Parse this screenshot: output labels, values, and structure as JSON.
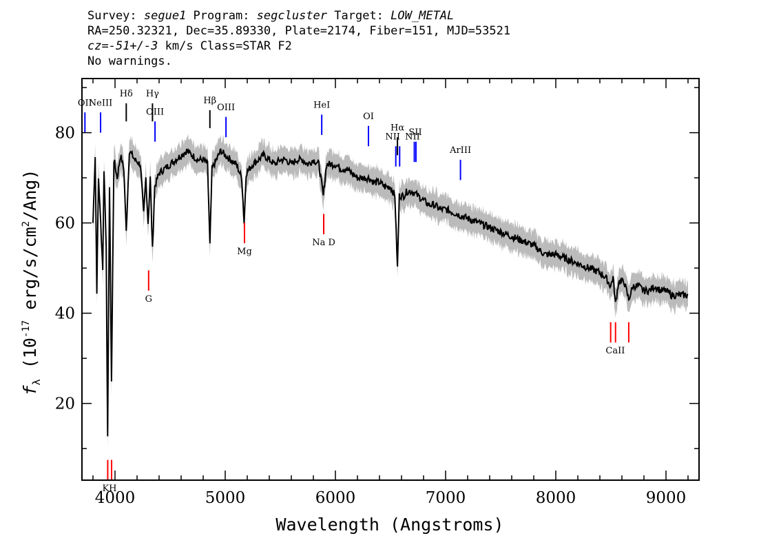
{
  "header": {
    "line1": {
      "survey_label": "Survey: ",
      "survey": "segue1",
      "program_label": " Program: ",
      "program": "segcluster",
      "target_label": " Target: ",
      "target": "LOW_METAL"
    },
    "line2": "RA=250.32321, Dec=35.89330, Plate=2174, Fiber=151, MJD=53521",
    "line3": {
      "cz_label": "cz=",
      "cz_value": "-51+/-3",
      "cz_rest": " km/s Class=STAR F2"
    },
    "line4": "No warnings."
  },
  "chart_data": {
    "type": "line",
    "xlabel": "Wavelength (Angstroms)",
    "ylabel": "f_λ (10^-17 erg/s/cm^2/Ang)",
    "xlim": [
      3700,
      9300
    ],
    "ylim": [
      3,
      92
    ],
    "x_ticks": [
      4000,
      5000,
      6000,
      7000,
      8000,
      9000
    ],
    "y_ticks": [
      20,
      40,
      60,
      80
    ],
    "grid": false,
    "colors": {
      "flux": "#000000",
      "error_band": "#bbbbbb",
      "emission": "#0000ff",
      "absorption": "#ff0000",
      "balmer": "#000000"
    },
    "series": [
      {
        "values_note": "observed flux",
        "x": [
          3800,
          3820,
          3835,
          3850,
          3870,
          3889,
          3900,
          3920,
          3933,
          3950,
          3968,
          3990,
          4020,
          4050,
          4080,
          4102,
          4130,
          4180,
          4230,
          4260,
          4280,
          4300,
          4320,
          4340,
          4360,
          4400,
          4450,
          4500,
          4550,
          4600,
          4650,
          4700,
          4750,
          4800,
          4840,
          4861,
          4880,
          4920,
          4960,
          5000,
          5050,
          5100,
          5150,
          5172,
          5190,
          5250,
          5300,
          5350,
          5400,
          5450,
          5500,
          5550,
          5600,
          5650,
          5700,
          5750,
          5800,
          5850,
          5890,
          5920,
          5950,
          6000,
          6050,
          6100,
          6150,
          6200,
          6250,
          6300,
          6350,
          6400,
          6450,
          6500,
          6540,
          6563,
          6580,
          6620,
          6650,
          6700,
          6750,
          6800,
          6850,
          6900,
          6950,
          7000,
          7100,
          7200,
          7300,
          7400,
          7500,
          7600,
          7700,
          7800,
          7900,
          8000,
          8100,
          8200,
          8300,
          8400,
          8450,
          8498,
          8520,
          8542,
          8570,
          8620,
          8662,
          8700,
          8750,
          8800,
          8850,
          8900,
          8950,
          9000,
          9050,
          9100,
          9150,
          9200
        ],
        "values": [
          60,
          75,
          45,
          70,
          60,
          50,
          72,
          55,
          12,
          68,
          25,
          74,
          70,
          75,
          72,
          58,
          76,
          74,
          73,
          62,
          70,
          60,
          70,
          54,
          68,
          71,
          72,
          73,
          74,
          75,
          76,
          75,
          74,
          74,
          73,
          55,
          72,
          74,
          76,
          75,
          74,
          73,
          70,
          60,
          71,
          73,
          74,
          75,
          74,
          73,
          74,
          74,
          73,
          74,
          74,
          73,
          74,
          73,
          66,
          73,
          73,
          73,
          72,
          72,
          71,
          70,
          70,
          70,
          69,
          69,
          68,
          68,
          66,
          50,
          66,
          66,
          67,
          67,
          66,
          65,
          64,
          64,
          63,
          63,
          62,
          61,
          60,
          59,
          58,
          57,
          56,
          55,
          53,
          53,
          52,
          51,
          50,
          49,
          48,
          46,
          48,
          42,
          47,
          47,
          43,
          46,
          46,
          45,
          45,
          46,
          45,
          45,
          44,
          44,
          44,
          44
        ]
      }
    ],
    "emission_lines": [
      {
        "label": "OII",
        "x": 3727,
        "y_top": 84.5,
        "y_bottom": 80
      },
      {
        "label": "NeIII",
        "x": 3869,
        "y_top": 84.5,
        "y_bottom": 80
      },
      {
        "label": "OIII",
        "x": 4363,
        "y_top": 82.5,
        "y_bottom": 78
      },
      {
        "label": "OIII",
        "x": 5007,
        "y_top": 83.5,
        "y_bottom": 79
      },
      {
        "label": "HeI",
        "x": 5876,
        "y_top": 84,
        "y_bottom": 79.5
      },
      {
        "label": "OI",
        "x": 6300,
        "y_top": 81.5,
        "y_bottom": 77
      },
      {
        "label": "NII",
        "x": 6548,
        "y_top": 77,
        "y_bottom": 72.5
      },
      {
        "label": "NII",
        "x": 6583,
        "y_top": 77,
        "y_bottom": 72.5
      },
      {
        "label": "SII",
        "x": 6716,
        "y_top": 78,
        "y_bottom": 73.5
      },
      {
        "label": "SII",
        "x": 6731,
        "y_top": 78,
        "y_bottom": 73.5
      },
      {
        "label": "ArIII",
        "x": 7135,
        "y_top": 74,
        "y_bottom": 69.5
      }
    ],
    "balmer_lines": [
      {
        "label": "Hδ",
        "x": 4102,
        "y_top": 86.5,
        "y_bottom": 82.5
      },
      {
        "label": "Hγ",
        "x": 4340,
        "y_top": 86.5,
        "y_bottom": 82.5
      },
      {
        "label": "Hβ",
        "x": 4861,
        "y_top": 85,
        "y_bottom": 81
      },
      {
        "label": "Hα",
        "x": 6563,
        "y_top": 79,
        "y_bottom": 75
      }
    ],
    "absorption_lines": [
      {
        "label": "K",
        "x": 3934,
        "y_top": 7.5,
        "y_bottom": 3
      },
      {
        "label": "H",
        "x": 3969,
        "y_top": 7.5,
        "y_bottom": 3
      },
      {
        "label": "G",
        "x": 4305,
        "y_top": 49.5,
        "y_bottom": 45
      },
      {
        "label": "Mg",
        "x": 5175,
        "y_top": 60,
        "y_bottom": 55.5
      },
      {
        "label": "Na",
        "x": 5894,
        "y_top": 62,
        "y_bottom": 57.5
      },
      {
        "label": "D",
        "x": 5894,
        "y_top": 62,
        "y_bottom": 57.5
      },
      {
        "label": "CaII",
        "x": 8498,
        "y_top": 38,
        "y_bottom": 33.5
      },
      {
        "label": "CaII",
        "x": 8542,
        "y_top": 38,
        "y_bottom": 33.5
      },
      {
        "label": "CaII",
        "x": 8662,
        "y_top": 38,
        "y_bottom": 33.5
      }
    ],
    "line_label_texts": {
      "OII": "OII",
      "NeIII": "NeIII",
      "OIII_a": "OIII",
      "OIII_b": "OIII",
      "HeI": "HeI",
      "OI": "OI",
      "NII": "NII",
      "SII": "SII",
      "ArIII": "ArIII",
      "Hdelta": "Hδ",
      "Hgamma": "Hγ",
      "Hbeta": "Hβ",
      "Halpha": "Hα",
      "KH": "KH",
      "G": "G",
      "Mg": "Mg",
      "NaD": "Na  D",
      "CaII": "CaII"
    }
  }
}
